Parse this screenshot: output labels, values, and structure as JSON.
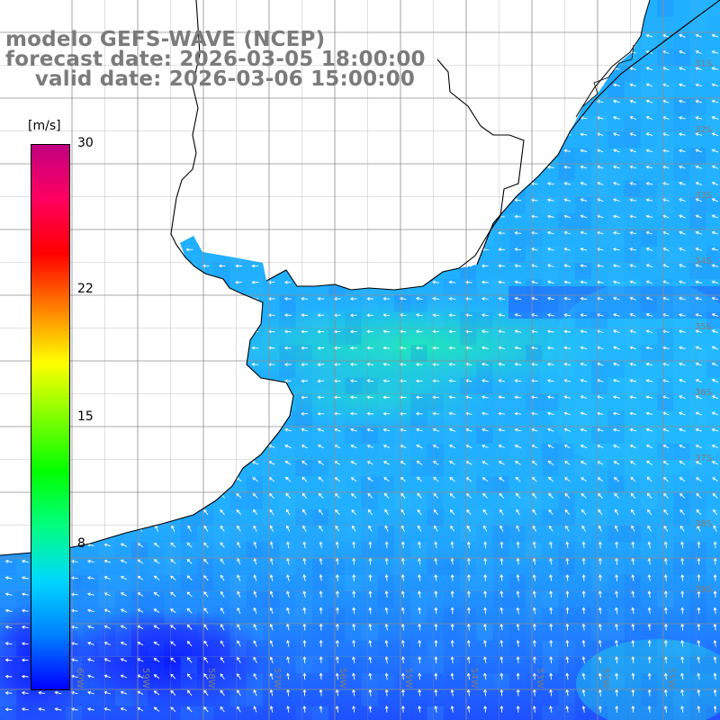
{
  "title": {
    "line1": "modelo GEFS-WAVE (NCEP)",
    "line2": "forecast date: 2026-03-05 18:00:00",
    "line3": "    valid date: 2026-03-06 15:00:00"
  },
  "colorbar": {
    "unit": "[m/s]",
    "ticks": [
      "30",
      "22",
      "15",
      "8"
    ],
    "tick_values": [
      30,
      22,
      15,
      8
    ],
    "min": 0,
    "max": 30,
    "colors": [
      "#0000ff",
      "#0080ff",
      "#00d8ff",
      "#00ff80",
      "#00ff00",
      "#80ff00",
      "#ffff00",
      "#ff8000",
      "#ff0000",
      "#ff0060",
      "#c00080"
    ]
  },
  "map": {
    "lat_labels": [
      "31S",
      "32S",
      "33S",
      "34S",
      "35S",
      "36S",
      "37S",
      "38S",
      "39S",
      "40S",
      "41S"
    ],
    "lon_labels": [
      "60W",
      "59W",
      "58W",
      "57W",
      "56W",
      "55W",
      "54W",
      "53W",
      "52W",
      "51W"
    ],
    "ocean_colors": {
      "deep": "#1a3cff",
      "mid": "#1e7bff",
      "light": "#21b5ff",
      "cyan": "#20d8f0",
      "green": "#22e8b8"
    },
    "land_color": "#ffffff",
    "coast_color": "#000000",
    "grid_color": "#909090"
  }
}
